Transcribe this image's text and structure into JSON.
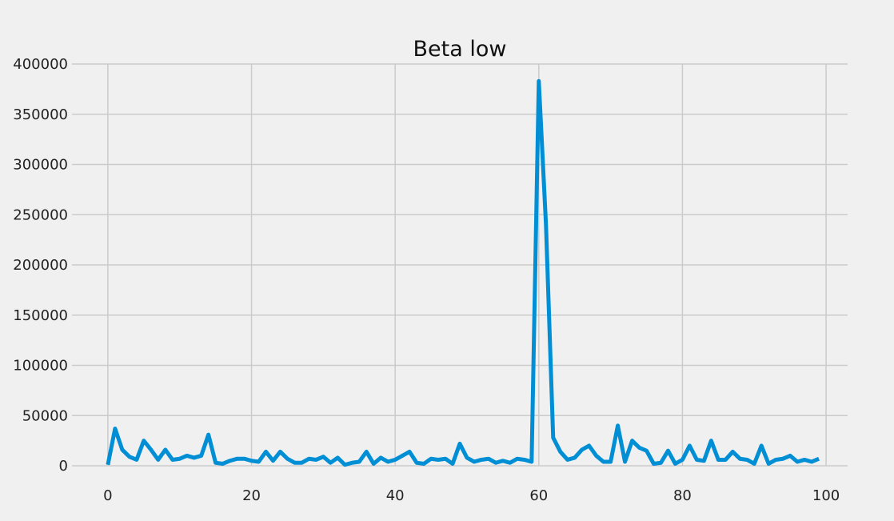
{
  "chart_data": {
    "type": "line",
    "title": "Beta low",
    "xlabel": "",
    "ylabel": "",
    "xlim": [
      -5,
      103
    ],
    "ylim": [
      0,
      400000
    ],
    "xticks": [
      0,
      20,
      40,
      60,
      80,
      100
    ],
    "xtick_labels": [
      "0",
      "20",
      "40",
      "60",
      "80",
      "100"
    ],
    "yticks": [
      0,
      50000,
      100000,
      150000,
      200000,
      250000,
      300000,
      350000,
      400000
    ],
    "ytick_labels": [
      "0",
      "50000",
      "100000",
      "150000",
      "200000",
      "250000",
      "300000",
      "350000",
      "400000"
    ],
    "grid": true,
    "line_color": "#008fd5",
    "series": [
      {
        "name": "Beta low",
        "x": [
          0,
          1,
          2,
          3,
          4,
          5,
          6,
          7,
          8,
          9,
          10,
          11,
          12,
          13,
          14,
          15,
          16,
          17,
          18,
          19,
          20,
          21,
          22,
          23,
          24,
          25,
          26,
          27,
          28,
          29,
          30,
          31,
          32,
          33,
          34,
          35,
          36,
          37,
          38,
          39,
          40,
          41,
          42,
          43,
          44,
          45,
          46,
          47,
          48,
          49,
          50,
          51,
          52,
          53,
          54,
          55,
          56,
          57,
          58,
          59,
          60,
          61,
          62,
          63,
          64,
          65,
          66,
          67,
          68,
          69,
          70,
          71,
          72,
          73,
          74,
          75,
          76,
          77,
          78,
          79,
          80,
          81,
          82,
          83,
          84,
          85,
          86,
          87,
          88,
          89,
          90,
          91,
          92,
          93,
          94,
          95,
          96,
          97,
          98,
          99
        ],
        "values": [
          1000,
          37000,
          16000,
          9000,
          6000,
          25000,
          16000,
          6000,
          16000,
          6000,
          7000,
          10000,
          8000,
          10000,
          31000,
          3000,
          2000,
          5000,
          7000,
          7000,
          5000,
          4000,
          14000,
          5000,
          14000,
          7000,
          3000,
          3000,
          7000,
          6000,
          9000,
          3000,
          8000,
          1000,
          3000,
          4000,
          14000,
          2000,
          8000,
          4000,
          6000,
          10000,
          14000,
          3000,
          2000,
          7000,
          6000,
          7000,
          2000,
          22000,
          8000,
          4000,
          6000,
          7000,
          3000,
          5000,
          3000,
          7000,
          6000,
          4000,
          383000,
          240000,
          28000,
          14000,
          6000,
          8000,
          16000,
          20000,
          10000,
          4000,
          4000,
          40000,
          4000,
          25000,
          18000,
          15000,
          2000,
          3000,
          15000,
          2000,
          6000,
          20000,
          6000,
          5000,
          25000,
          6000,
          6000,
          14000,
          7000,
          6000,
          2000,
          20000,
          2000,
          6000,
          7000,
          10000,
          4000,
          6000,
          4000,
          7000
        ]
      }
    ]
  }
}
